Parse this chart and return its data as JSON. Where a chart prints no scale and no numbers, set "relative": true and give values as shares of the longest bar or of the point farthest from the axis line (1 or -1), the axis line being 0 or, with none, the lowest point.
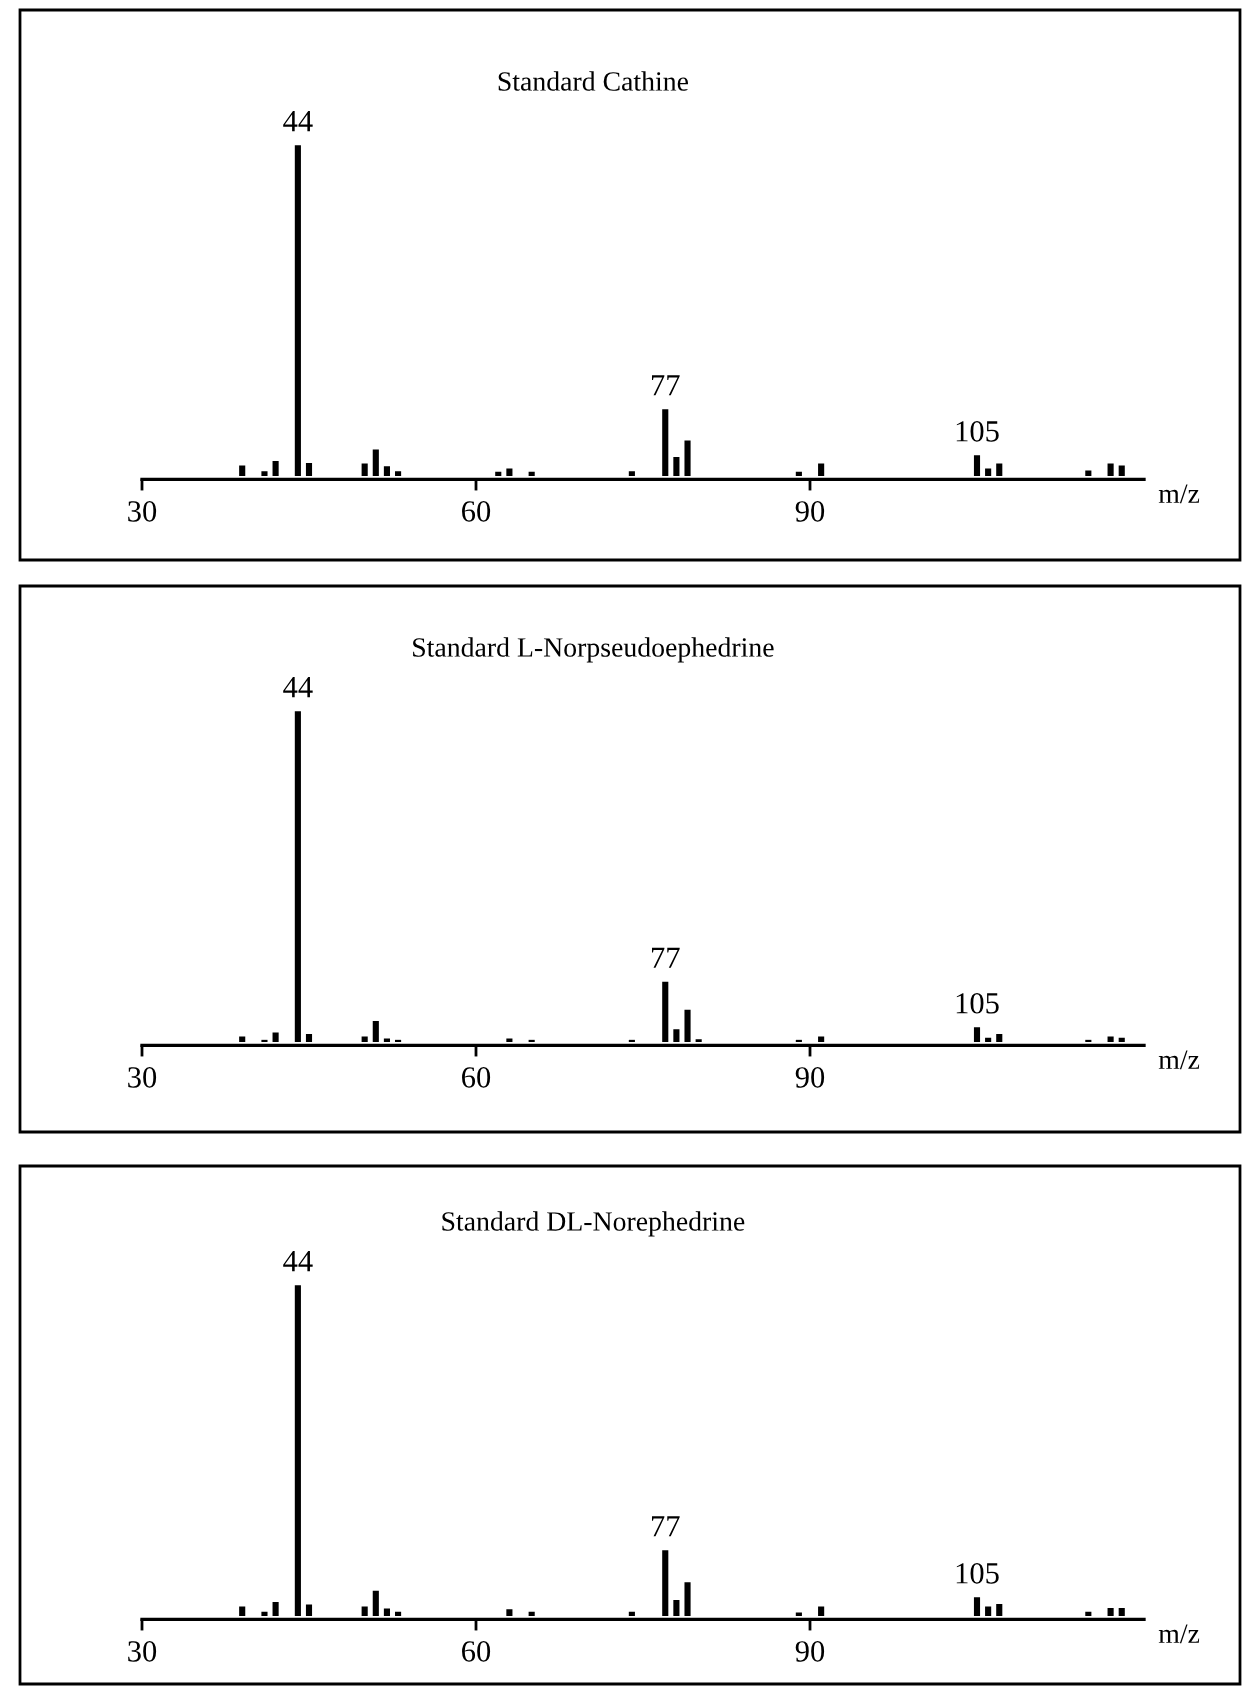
{
  "chart_data": [
    {
      "type": "bar",
      "title": "Standard Cathine",
      "xlabel": "m/z",
      "relative": true,
      "color": "#000000",
      "xlim": [
        30,
        120
      ],
      "xticks": [
        30,
        60,
        90
      ],
      "grid": false,
      "legend": false,
      "x": [
        39,
        41,
        42,
        44,
        45,
        50,
        51,
        52,
        53,
        62,
        63,
        65,
        74,
        77,
        78,
        79,
        89,
        91,
        105,
        106,
        107,
        115,
        117,
        118
      ],
      "values": [
        0.029,
        0.012,
        0.043,
        1,
        0.037,
        0.035,
        0.078,
        0.027,
        0.012,
        0.01,
        0.02,
        0.01,
        0.012,
        0.2,
        0.055,
        0.105,
        0.01,
        0.035,
        0.06,
        0.02,
        0.035,
        0.014,
        0.035,
        0.029
      ],
      "annotations": [
        {
          "text": "44",
          "x": 44,
          "y": 1
        },
        {
          "text": "77",
          "x": 77,
          "y": 0.2
        },
        {
          "text": "105",
          "x": 105,
          "y": 0.06
        }
      ]
    },
    {
      "type": "bar",
      "title": "Standard L-Norpseudoephedrine",
      "xlabel": "m/z",
      "relative": true,
      "color": "#000000",
      "xlim": [
        30,
        120
      ],
      "xticks": [
        30,
        60,
        90
      ],
      "grid": false,
      "legend": false,
      "x": [
        39,
        41,
        42,
        44,
        45,
        50,
        51,
        52,
        53,
        63,
        65,
        74,
        77,
        78,
        79,
        80,
        89,
        91,
        105,
        106,
        107,
        115,
        117,
        118
      ],
      "values": [
        0.014,
        0.004,
        0.026,
        1,
        0.022,
        0.014,
        0.061,
        0.008,
        0.004,
        0.008,
        0.004,
        0.004,
        0.18,
        0.036,
        0.095,
        0.006,
        0.004,
        0.014,
        0.042,
        0.01,
        0.022,
        0.004,
        0.014,
        0.01
      ],
      "annotations": [
        {
          "text": "44",
          "x": 44,
          "y": 1
        },
        {
          "text": "77",
          "x": 77,
          "y": 0.18
        },
        {
          "text": "105",
          "x": 105,
          "y": 0.042
        }
      ]
    },
    {
      "type": "bar",
      "title": "Standard DL-Norephedrine",
      "xlabel": "m/z",
      "relative": true,
      "color": "#000000",
      "xlim": [
        30,
        120
      ],
      "xticks": [
        30,
        60,
        90
      ],
      "grid": false,
      "legend": false,
      "x": [
        39,
        41,
        42,
        44,
        45,
        50,
        51,
        52,
        53,
        63,
        65,
        74,
        77,
        78,
        79,
        89,
        91,
        105,
        106,
        107,
        115,
        117,
        118
      ],
      "values": [
        0.026,
        0.01,
        0.04,
        1,
        0.032,
        0.026,
        0.074,
        0.02,
        0.01,
        0.018,
        0.01,
        0.01,
        0.197,
        0.046,
        0.1,
        0.008,
        0.026,
        0.054,
        0.026,
        0.034,
        0.01,
        0.022,
        0.022
      ],
      "annotations": [
        {
          "text": "44",
          "x": 44,
          "y": 1
        },
        {
          "text": "77",
          "x": 77,
          "y": 0.197
        },
        {
          "text": "105",
          "x": 105,
          "y": 0.054
        }
      ]
    }
  ]
}
